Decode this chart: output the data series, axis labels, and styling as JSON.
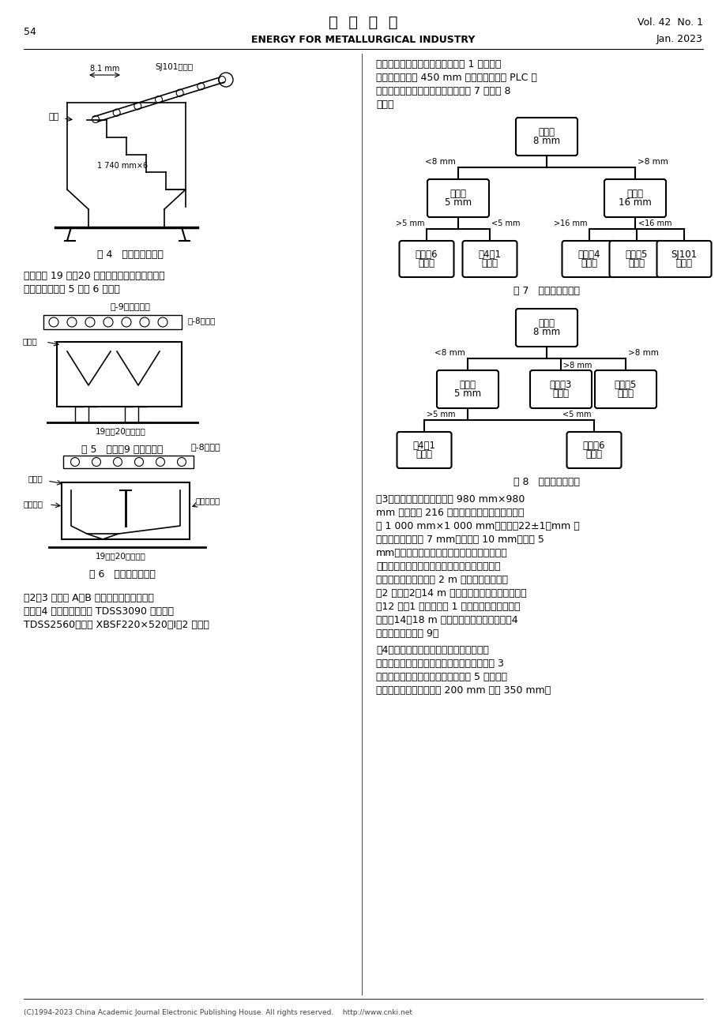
{
  "page_title": "冶  金  能  源",
  "page_subtitle": "ENERGY FOR METALLURGICAL INDUSTRY",
  "vol_info": "Vol. 42  No. 1",
  "date_info": "Jan. 2023",
  "page_num": "54",
  "fig4_caption": "图 4   改造后新增漏斗",
  "fig5_caption": "图 5   原配－9 可逆皮带机",
  "fig6_caption": "图 6   改造后摆式漏斗",
  "fig7_caption": "图 7   改造前工艺流程",
  "fig8_caption": "图 8   改造后工艺流程",
  "text_block1": "层振动筛，在悬臂振动筛下新设计 1 个三通漏\n斗，采用行程为 450 mm 电液推杆阀实现 PLC 远\n程控制，改造前后工艺流程分别如图 7 和如图 8\n所示。",
  "text_block2": "方式实现 19 号、20 号返矿仓远程自动装料，改\n造前后分别如图 5 和图 6 所示。",
  "text_block3": "（2）3 号烧结 A、B 系列振动筛改造。取消\n成筛－4 胶带机、一次筛 TDSS3090 和二次筛\nTDSS2560，选用 XBSF220×520－I－2 悬臂双",
  "text_block4": "（3）拆除原尼龙规格尺寸为 980 mm×980\nmm 衬板共计 216 块。采用三合一耐磨陶瓷规格\n为 1 000 mm×1 000 mm、厚度（22±1）mm 橡\n胶复合板，陶瓷片 7 mm，橡胶板 10 mm，钢板 5\nmm。衬板结构型式：导料板（前端）＋螺旋逆\n流衬板，混料机筒体轴向布置如下：顺着物料的\n运行方向，从进料端到 2 m 安装顺向导料槽板\n（2 圈）；2～14 m 为平弧板和逆向导流槽板混装\n（12 圈，1 圈平弧板与 1 圈逆向导流槽板交替布\n置）；14～18 m 为平弧板加逆向导流槽板（4\n圈）。详见安装图 9。",
  "text_block5": "（4）根据原尺寸重新设计制作混合料槽下\n段锥形仓，并在其内壁安装陶瓷衬板。取消原 3\n号烧结机给料门装置，重新设计一套 5 块主辅门\n给料装置。主料门开度由 200 mm 增至 350 mm，",
  "bg_color": "#ffffff"
}
